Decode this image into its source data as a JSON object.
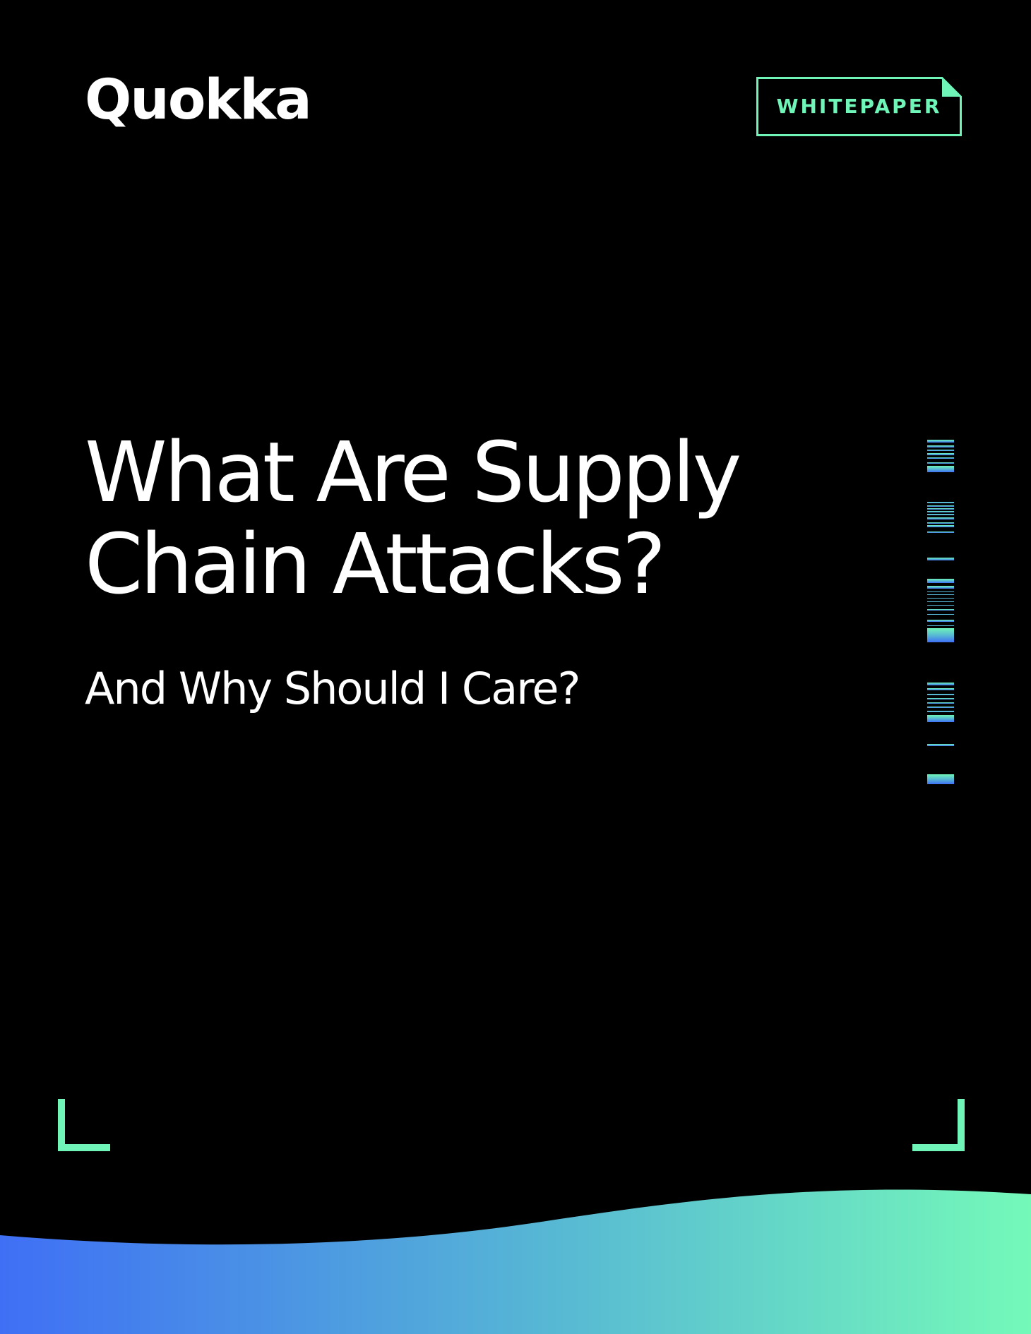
{
  "brand": {
    "logo_text": "Quokka"
  },
  "badge": {
    "label": "WHITEPAPER"
  },
  "title": {
    "line1": "What Are Supply",
    "line2": "Chain Attacks?"
  },
  "subtitle": "And Why Should I Care?",
  "colors": {
    "background": "#000000",
    "accent_green": "#6ff5b8",
    "gradient_start": "#3f6ff5",
    "gradient_mid": "#55b3d6",
    "gradient_end": "#74f9b9"
  },
  "decorations": {
    "corner_icon_left": "corner-bracket-bottom-left",
    "corner_icon_right": "corner-bracket-bottom-right",
    "barcode_icon": "vertical-barcode-strip"
  }
}
